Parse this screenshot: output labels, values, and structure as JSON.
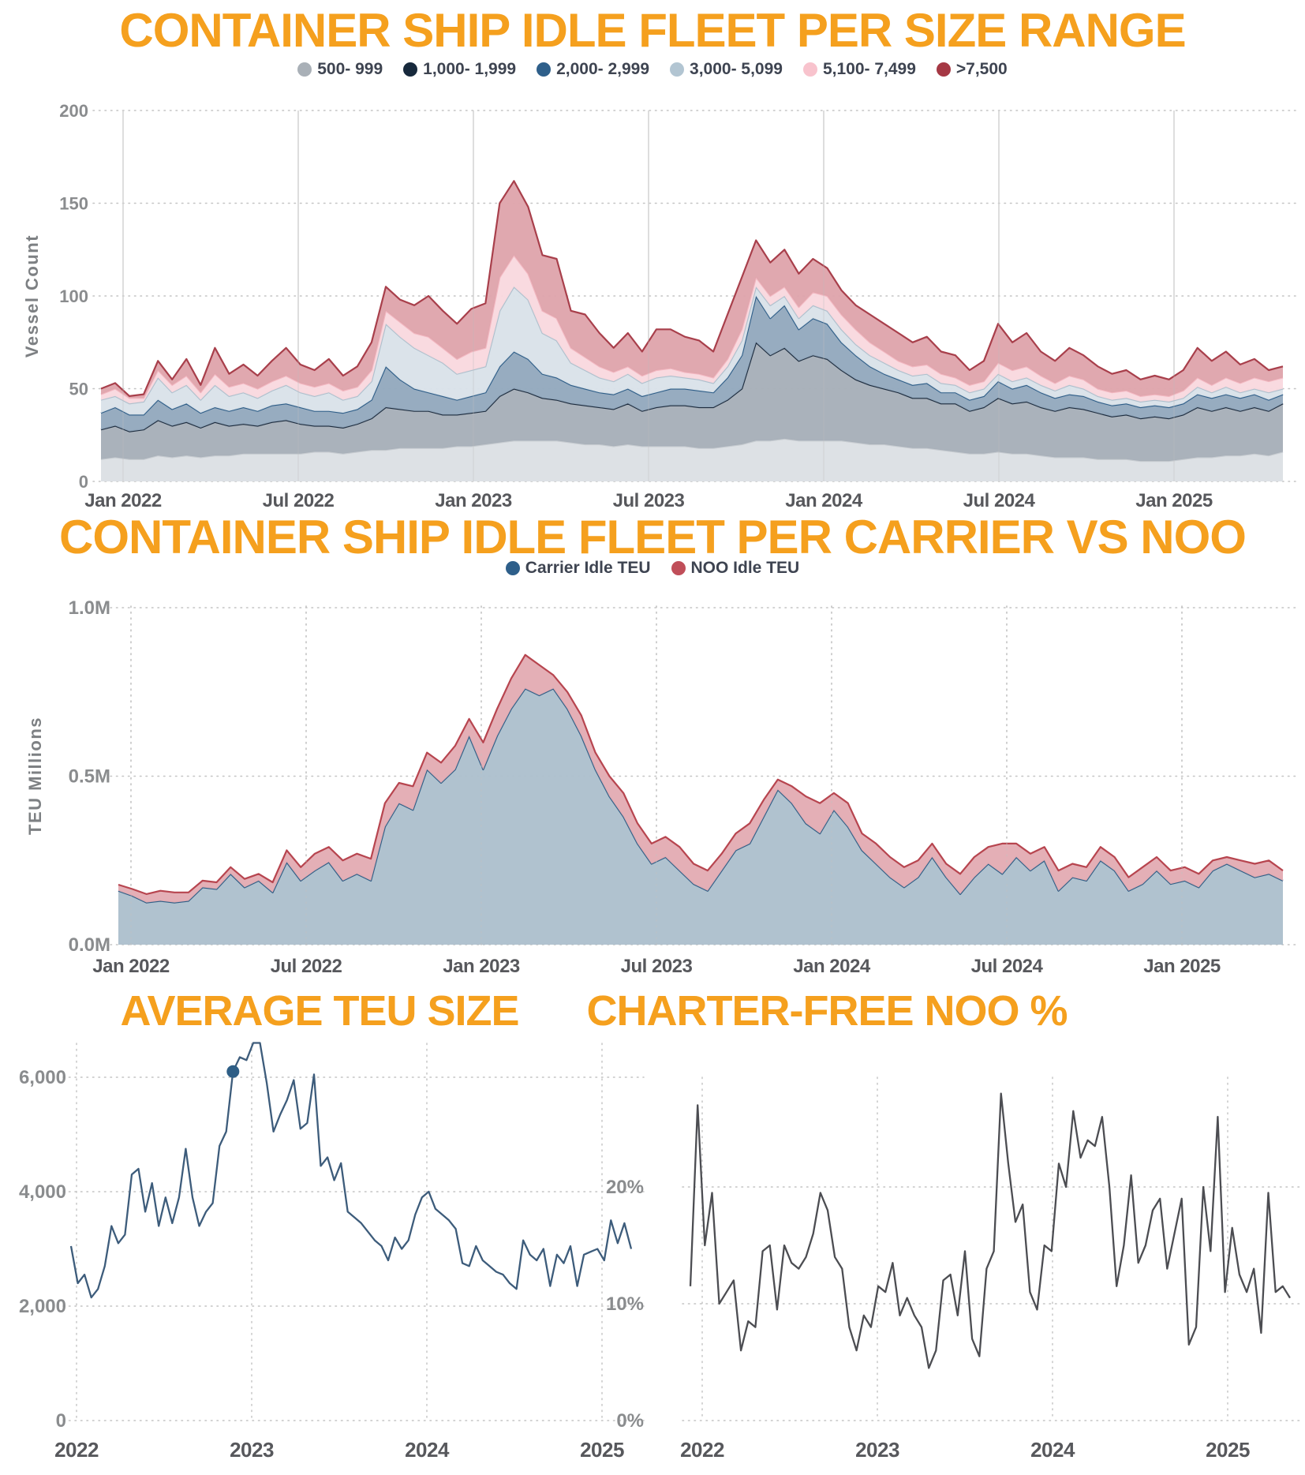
{
  "page": {
    "background": "#ffffff",
    "title_color": "#F5A01E",
    "axis_label_color": "#7D8083",
    "tick_label_color": "#8A8C8E",
    "x_tick_label_color": "#57585C"
  },
  "time_axis_note": "84 samples, semi-monthly, Jan 2022 through mid-Apr 2025",
  "chart_data": [
    {
      "id": "idle_fleet_per_size_range",
      "type": "area",
      "stacked": true,
      "title": "CONTAINER SHIP IDLE FLEET PER SIZE RANGE",
      "ylabel": "Vessel Count",
      "ylim": [
        0,
        200
      ],
      "grid": true,
      "legend_position": "top",
      "yticks": [
        {
          "value": 0,
          "label": "0"
        },
        {
          "value": 50,
          "label": "50"
        },
        {
          "value": 100,
          "label": "100"
        },
        {
          "value": 150,
          "label": "150"
        },
        {
          "value": 200,
          "label": "200"
        }
      ],
      "xticks": [
        "Jan 2022",
        "Jul 2022",
        "Jan 2023",
        "Jul 2023",
        "Jan 2024",
        "Jul 2024",
        "Jan 2025"
      ],
      "series": [
        {
          "name": "500- 999",
          "legend_color": "#A9B0B7",
          "fill": "#DCE0E4",
          "stroke": "#C6CBD0",
          "values": [
            12,
            13,
            12,
            12,
            14,
            13,
            14,
            13,
            14,
            14,
            15,
            15,
            15,
            15,
            15,
            16,
            16,
            15,
            16,
            17,
            17,
            18,
            18,
            18,
            18,
            19,
            19,
            20,
            21,
            22,
            22,
            22,
            22,
            21,
            20,
            20,
            19,
            20,
            19,
            19,
            19,
            19,
            18,
            18,
            19,
            20,
            22,
            22,
            23,
            22,
            22,
            22,
            22,
            21,
            20,
            20,
            19,
            18,
            18,
            17,
            16,
            15,
            15,
            16,
            15,
            15,
            14,
            13,
            13,
            13,
            12,
            12,
            12,
            11,
            11,
            11,
            12,
            13,
            13,
            14,
            14,
            15,
            14,
            16
          ]
        },
        {
          "name": "1,000- 1,999",
          "legend_color": "#17293C",
          "fill": "#A7AFB8",
          "stroke": "#1E2D3F",
          "values": [
            16,
            17,
            15,
            16,
            19,
            17,
            18,
            16,
            18,
            16,
            16,
            15,
            17,
            18,
            16,
            14,
            14,
            14,
            15,
            17,
            23,
            21,
            20,
            20,
            18,
            17,
            18,
            18,
            25,
            28,
            26,
            23,
            22,
            21,
            21,
            20,
            20,
            22,
            19,
            21,
            22,
            22,
            22,
            22,
            25,
            30,
            53,
            46,
            49,
            43,
            46,
            44,
            38,
            34,
            32,
            30,
            29,
            27,
            27,
            25,
            26,
            23,
            25,
            29,
            27,
            28,
            26,
            25,
            27,
            26,
            25,
            23,
            24,
            23,
            24,
            23,
            24,
            27,
            25,
            26,
            24,
            25,
            24,
            26
          ]
        },
        {
          "name": "2,000- 2,999",
          "legend_color": "#2E5F8A",
          "fill": "#93A9BD",
          "stroke": "#2F5E88",
          "values": [
            9,
            10,
            9,
            8,
            11,
            9,
            10,
            8,
            8,
            8,
            9,
            8,
            9,
            9,
            9,
            8,
            8,
            8,
            8,
            10,
            22,
            16,
            12,
            10,
            10,
            8,
            9,
            10,
            16,
            20,
            18,
            13,
            12,
            10,
            9,
            8,
            8,
            8,
            8,
            8,
            9,
            9,
            9,
            8,
            12,
            18,
            25,
            20,
            23,
            17,
            20,
            19,
            15,
            13,
            10,
            8,
            7,
            7,
            8,
            6,
            6,
            6,
            6,
            9,
            8,
            9,
            8,
            7,
            7,
            7,
            6,
            6,
            6,
            6,
            6,
            6,
            6,
            7,
            7,
            7,
            7,
            7,
            6,
            5
          ]
        },
        {
          "name": "3,000- 5,099",
          "legend_color": "#B2C5D2",
          "fill": "#DAE2E9",
          "stroke": "#AEC0CD",
          "values": [
            7,
            6,
            6,
            7,
            12,
            9,
            10,
            7,
            12,
            8,
            8,
            7,
            8,
            10,
            8,
            8,
            10,
            7,
            7,
            10,
            23,
            23,
            22,
            20,
            18,
            14,
            14,
            14,
            30,
            35,
            32,
            22,
            20,
            12,
            10,
            8,
            7,
            8,
            7,
            8,
            7,
            6,
            6,
            5,
            6,
            8,
            5,
            7,
            5,
            6,
            7,
            7,
            7,
            6,
            6,
            6,
            5,
            5,
            5,
            5,
            4,
            4,
            4,
            4,
            4,
            4,
            4,
            4,
            5,
            4,
            3,
            3,
            3,
            3,
            3,
            3,
            3,
            4,
            3,
            4,
            3,
            3,
            4,
            3
          ]
        },
        {
          "name": "5,100- 7,499",
          "legend_color": "#F8C3CD",
          "fill": "#F9D9DF",
          "stroke": "#F2B8C1",
          "values": [
            3,
            4,
            3,
            2,
            4,
            4,
            5,
            4,
            6,
            5,
            5,
            5,
            5,
            5,
            5,
            5,
            5,
            5,
            5,
            6,
            7,
            8,
            8,
            10,
            8,
            8,
            10,
            10,
            18,
            17,
            14,
            12,
            12,
            8,
            7,
            6,
            5,
            4,
            4,
            4,
            4,
            3,
            3,
            3,
            4,
            6,
            5,
            5,
            5,
            6,
            7,
            8,
            8,
            8,
            7,
            6,
            5,
            5,
            5,
            5,
            4,
            4,
            4,
            6,
            6,
            6,
            5,
            4,
            5,
            5,
            4,
            4,
            4,
            3,
            3,
            3,
            4,
            5,
            4,
            5,
            5,
            6,
            6,
            6
          ]
        },
        {
          "name": ">7,500",
          "legend_color": "#A53844",
          "fill": "#DFA4AC",
          "stroke": "#A83F4B",
          "values": [
            3,
            3,
            1,
            2,
            5,
            3,
            9,
            4,
            14,
            7,
            10,
            7,
            11,
            15,
            10,
            9,
            13,
            8,
            11,
            15,
            13,
            12,
            15,
            22,
            20,
            19,
            23,
            24,
            40,
            40,
            36,
            30,
            32,
            20,
            23,
            18,
            13,
            18,
            13,
            22,
            21,
            19,
            18,
            14,
            24,
            28,
            20,
            18,
            20,
            18,
            18,
            15,
            13,
            13,
            15,
            15,
            15,
            13,
            15,
            12,
            12,
            8,
            11,
            21,
            15,
            18,
            13,
            12,
            15,
            13,
            12,
            10,
            11,
            9,
            10,
            9,
            11,
            16,
            13,
            14,
            10,
            10,
            6,
            6
          ]
        }
      ]
    },
    {
      "id": "idle_fleet_carrier_vs_noo",
      "type": "area",
      "stacked": true,
      "title": "CONTAINER SHIP IDLE FLEET PER CARRIER VS NOO",
      "ylabel": "TEU Millions",
      "ylim": [
        0,
        1.0
      ],
      "grid": true,
      "legend_position": "top",
      "yticks": [
        {
          "value": 0,
          "label": "0.0M"
        },
        {
          "value": 0.5,
          "label": "0.5M"
        },
        {
          "value": 1.0,
          "label": "1.0M"
        }
      ],
      "xticks": [
        "Jan 2022",
        "Jul 2022",
        "Jan 2023",
        "Jul 2023",
        "Jan 2024",
        "Jul 2024",
        "Jan 2025"
      ],
      "series": [
        {
          "name": "Carrier Idle TEU",
          "legend_color": "#2E5F8A",
          "fill": "#ADBFCD",
          "stroke": "#2E5E86",
          "values": [
            0.16,
            0.145,
            0.125,
            0.13,
            0.125,
            0.13,
            0.17,
            0.165,
            0.21,
            0.17,
            0.19,
            0.155,
            0.245,
            0.19,
            0.22,
            0.245,
            0.19,
            0.21,
            0.19,
            0.35,
            0.42,
            0.4,
            0.52,
            0.48,
            0.52,
            0.62,
            0.52,
            0.62,
            0.7,
            0.76,
            0.74,
            0.76,
            0.7,
            0.62,
            0.52,
            0.44,
            0.38,
            0.3,
            0.24,
            0.26,
            0.22,
            0.18,
            0.16,
            0.22,
            0.28,
            0.3,
            0.38,
            0.46,
            0.42,
            0.36,
            0.33,
            0.4,
            0.35,
            0.28,
            0.24,
            0.2,
            0.17,
            0.2,
            0.26,
            0.2,
            0.15,
            0.2,
            0.24,
            0.21,
            0.26,
            0.22,
            0.25,
            0.16,
            0.2,
            0.19,
            0.25,
            0.22,
            0.16,
            0.18,
            0.22,
            0.18,
            0.19,
            0.17,
            0.22,
            0.24,
            0.22,
            0.2,
            0.21,
            0.19
          ]
        },
        {
          "name": "NOO Idle TEU",
          "legend_color": "#C04E59",
          "fill": "#E3ACB3",
          "stroke": "#B7454F",
          "values": [
            0.018,
            0.02,
            0.025,
            0.03,
            0.03,
            0.025,
            0.02,
            0.02,
            0.02,
            0.025,
            0.02,
            0.03,
            0.035,
            0.04,
            0.05,
            0.045,
            0.06,
            0.06,
            0.065,
            0.07,
            0.06,
            0.07,
            0.05,
            0.06,
            0.07,
            0.05,
            0.08,
            0.08,
            0.09,
            0.1,
            0.09,
            0.04,
            0.05,
            0.06,
            0.05,
            0.06,
            0.07,
            0.06,
            0.06,
            0.06,
            0.07,
            0.06,
            0.06,
            0.05,
            0.05,
            0.06,
            0.05,
            0.03,
            0.05,
            0.08,
            0.09,
            0.05,
            0.07,
            0.05,
            0.06,
            0.06,
            0.06,
            0.05,
            0.04,
            0.04,
            0.06,
            0.06,
            0.05,
            0.09,
            0.04,
            0.05,
            0.04,
            0.06,
            0.04,
            0.04,
            0.04,
            0.04,
            0.04,
            0.05,
            0.04,
            0.04,
            0.04,
            0.04,
            0.03,
            0.02,
            0.03,
            0.04,
            0.04,
            0.03
          ]
        }
      ]
    },
    {
      "id": "average_teu_size",
      "type": "line",
      "title": "AVERAGE TEU SIZE",
      "ylim": [
        0,
        6600
      ],
      "values_clipped_at_top": true,
      "grid": true,
      "yticks": [
        {
          "value": 0,
          "label": "0"
        },
        {
          "value": 2000,
          "label": "2,000"
        },
        {
          "value": 4000,
          "label": "4,000"
        },
        {
          "value": 6000,
          "label": "6,000"
        }
      ],
      "xticks": [
        "2022",
        "2023",
        "2024",
        "2025"
      ],
      "marker_index": 24,
      "series": [
        {
          "name": "Average TEU Size",
          "stroke": "#3D5C7B",
          "values": [
            3050,
            2400,
            2550,
            2150,
            2300,
            2700,
            3400,
            3100,
            3250,
            4300,
            4400,
            3650,
            4150,
            3400,
            3900,
            3450,
            3900,
            4750,
            3900,
            3400,
            3650,
            3800,
            4800,
            5050,
            6100,
            6350,
            6300,
            6700,
            6700,
            5900,
            5050,
            5350,
            5600,
            5950,
            5100,
            5200,
            6050,
            4450,
            4600,
            4200,
            4500,
            3650,
            3550,
            3450,
            3300,
            3150,
            3050,
            2800,
            3200,
            3000,
            3150,
            3600,
            3900,
            4000,
            3700,
            3600,
            3500,
            3350,
            2750,
            2700,
            3050,
            2800,
            2700,
            2600,
            2550,
            2400,
            2300,
            3150,
            2900,
            2800,
            3000,
            2350,
            2900,
            2750,
            3050,
            2350,
            2900,
            2950,
            3000,
            2800,
            3500,
            3100,
            3450,
            3000
          ]
        }
      ]
    },
    {
      "id": "charter_free_noo_pct",
      "type": "line",
      "title": "CHARTER-FREE NOO %",
      "ylim": [
        0,
        30
      ],
      "grid": true,
      "yticks": [
        {
          "value": 0,
          "label": "0%"
        },
        {
          "value": 10,
          "label": "10%"
        },
        {
          "value": 20,
          "label": "20%"
        }
      ],
      "xticks": [
        "2022",
        "2023",
        "2024",
        "2025"
      ],
      "series": [
        {
          "name": "Charter-free NOO %",
          "stroke": "#4C4D52",
          "values": [
            11.5,
            27,
            15,
            19.5,
            10,
            11,
            12,
            6,
            8.5,
            8,
            14.5,
            15,
            9.5,
            15,
            13.5,
            13,
            14,
            16,
            19.5,
            18,
            14,
            13,
            8,
            6,
            9,
            8,
            11.5,
            11,
            13.5,
            9,
            10.5,
            9,
            8,
            4.5,
            6,
            12,
            12.5,
            9,
            14.5,
            7,
            5.5,
            13,
            14.5,
            28,
            22,
            17,
            18.5,
            11,
            9.5,
            15,
            14.5,
            22,
            20,
            26.5,
            22.5,
            24,
            23.5,
            26,
            20,
            11.5,
            15,
            21,
            13.5,
            15,
            18,
            19,
            13,
            16,
            19,
            6.5,
            8,
            20,
            14.5,
            26,
            11,
            16.5,
            12.5,
            11,
            13,
            7.5,
            19.5,
            11,
            11.5,
            10.5
          ]
        }
      ]
    }
  ]
}
